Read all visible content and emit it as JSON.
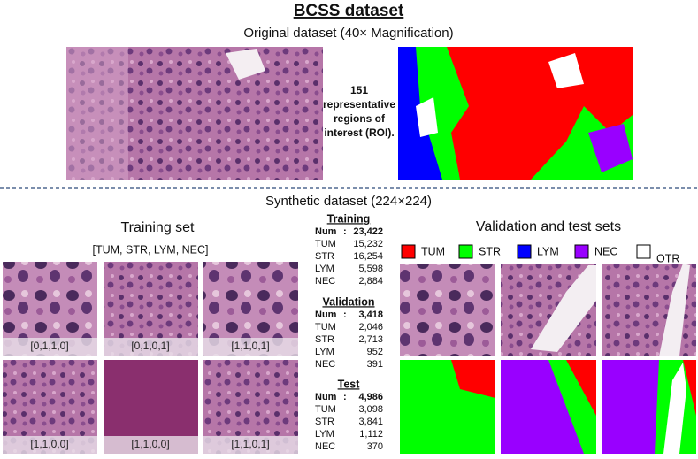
{
  "header": {
    "title": "BCSS dataset",
    "subtitle": "Original dataset (40× Magnification)",
    "roi_lines": [
      "151",
      "representative",
      "regions of",
      "interest (ROI)."
    ]
  },
  "synthetic": {
    "title": "Synthetic dataset (224×224)"
  },
  "training_set": {
    "title": "Training set",
    "label_order": "[TUM, STR, LYM, NEC]",
    "tiles": [
      "[0,1,1,0]",
      "[0,1,0,1]",
      "[1,1,0,1]",
      "[1,1,0,0]",
      "[1,1,0,0]",
      "[1,1,0,1]"
    ]
  },
  "stats": [
    {
      "title": "Training",
      "rows": [
        [
          "Num",
          ":",
          "23,422"
        ],
        [
          "TUM",
          "15,232"
        ],
        [
          "STR",
          "16,254"
        ],
        [
          "LYM",
          "5,598"
        ],
        [
          "NEC",
          "2,884"
        ]
      ]
    },
    {
      "title": "Validation",
      "rows": [
        [
          "Num",
          ":",
          "3,418"
        ],
        [
          "TUM",
          "2,046"
        ],
        [
          "STR",
          "2,713"
        ],
        [
          "LYM",
          "952"
        ],
        [
          "NEC",
          "391"
        ]
      ]
    },
    {
      "title": "Test",
      "rows": [
        [
          "Num",
          ":",
          "4,986"
        ],
        [
          "TUM",
          "3,098"
        ],
        [
          "STR",
          "3,841"
        ],
        [
          "LYM",
          "1,112"
        ],
        [
          "NEC",
          "370"
        ]
      ]
    }
  ],
  "validation_set": {
    "title": "Validation and test sets",
    "legend": [
      {
        "name": "TUM",
        "color": "#ff0000"
      },
      {
        "name": "STR",
        "color": "#00ff00"
      },
      {
        "name": "LYM",
        "color": "#0000ff"
      },
      {
        "name": "NEC",
        "color": "#9900ff"
      },
      {
        "name": "OTR",
        "color": "#ffffff"
      }
    ]
  }
}
